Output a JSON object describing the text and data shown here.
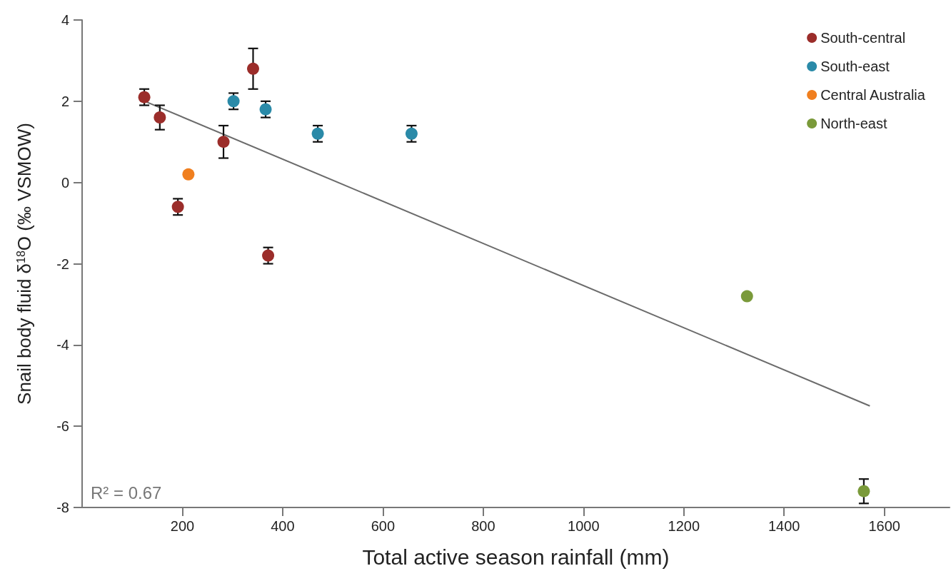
{
  "chart_data": {
    "type": "scatter",
    "xlabel": "Total active season rainfall (mm)",
    "ylabel": "Snail body fluid δ$^{18}$O (‰ VSMOW)",
    "xlim": [
      0,
      1730
    ],
    "xticks": [
      200,
      400,
      600,
      800,
      1000,
      1200,
      1400,
      1600
    ],
    "ylim": [
      -8,
      4
    ],
    "yticks": [
      -8,
      -6,
      -4,
      -2,
      0,
      2,
      4
    ],
    "grid": false,
    "legend": "top right",
    "marker": "circle",
    "annotations": [
      "R² = 0.67"
    ],
    "series": [
      {
        "name": "South-central",
        "color": "#9b2d2a",
        "x": [
          124,
          155,
          191,
          282,
          341,
          371
        ],
        "values": [
          2.1,
          1.6,
          -0.6,
          1.0,
          2.8,
          -1.8
        ],
        "errors": [
          0.2,
          0.3,
          0.2,
          0.4,
          0.5,
          0.2
        ]
      },
      {
        "name": "South-east",
        "color": "#2a8aa8",
        "x": [
          302,
          366,
          470,
          657
        ],
        "values": [
          2.0,
          1.8,
          1.2,
          1.2
        ],
        "errors": [
          0.2,
          0.2,
          0.2,
          0.2
        ]
      },
      {
        "name": "Central Australia",
        "color": "#f07f1f",
        "x": [
          212
        ],
        "values": [
          0.2
        ]
      },
      {
        "name": "North-east",
        "color": "#7a9a3a",
        "x": [
          1326,
          1559
        ],
        "values": [
          -2.8,
          -7.6
        ],
        "errors": [
          null,
          0.3
        ]
      },
      {
        "type": "line",
        "color": "#6b6b6b",
        "x": [
          125,
          1571
        ],
        "values": [
          2.0,
          -5.5
        ],
        "marker": "none"
      }
    ]
  }
}
